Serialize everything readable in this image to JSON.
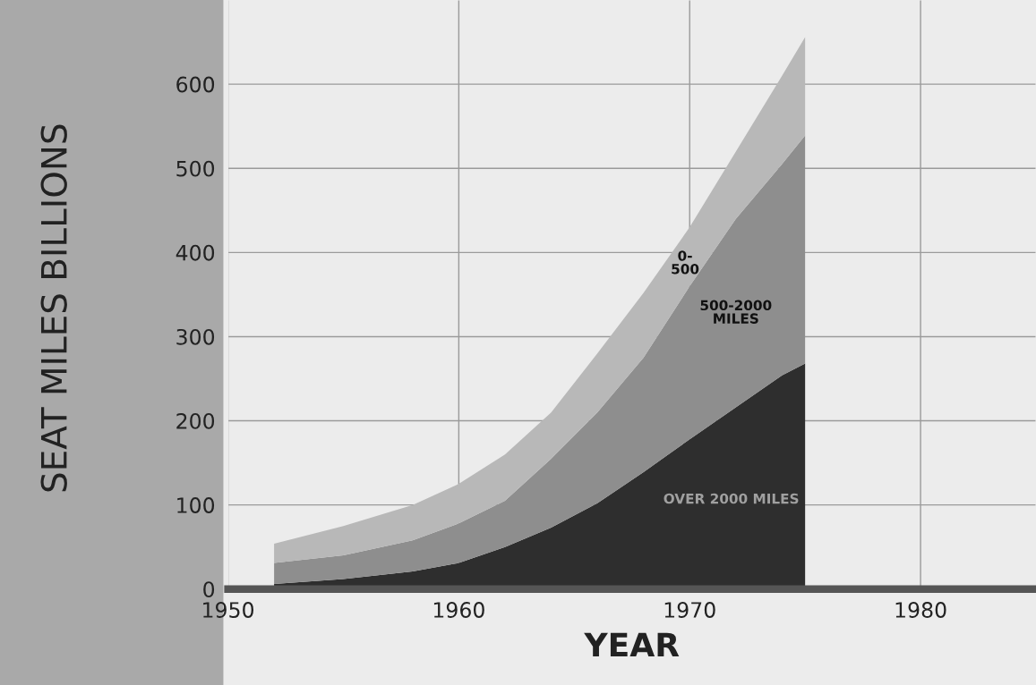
{
  "chart_data": {
    "type": "area",
    "stacked": true,
    "xlabel": "YEAR",
    "ylabel": "SEAT MILES BILLIONS",
    "x": [
      1952,
      1955,
      1958,
      1960,
      1962,
      1964,
      1966,
      1968,
      1970,
      1972,
      1974,
      1975
    ],
    "series": [
      {
        "name": "OVER 2000 MILES",
        "color": "#2e2e2e",
        "values": [
          6,
          12,
          21,
          31,
          50,
          73,
          102,
          139,
          178,
          216,
          254,
          268
        ]
      },
      {
        "name": "500-2000\nMILES",
        "color": "#8e8e8e",
        "values": [
          25,
          28,
          37,
          47,
          55,
          82,
          108,
          136,
          182,
          224,
          251,
          271
        ]
      },
      {
        "name": "0-\n500",
        "color": "#b8b8b8",
        "values": [
          23,
          35,
          42,
          47,
          55,
          55,
          70,
          77,
          70,
          80,
          105,
          117
        ]
      }
    ],
    "xlim": [
      1950,
      1985
    ],
    "ylim": [
      0,
      700
    ],
    "xticks": [
      1950,
      1960,
      1970,
      1980
    ],
    "yticks": [
      0,
      100,
      200,
      300,
      400,
      500,
      600
    ],
    "grid": true
  }
}
